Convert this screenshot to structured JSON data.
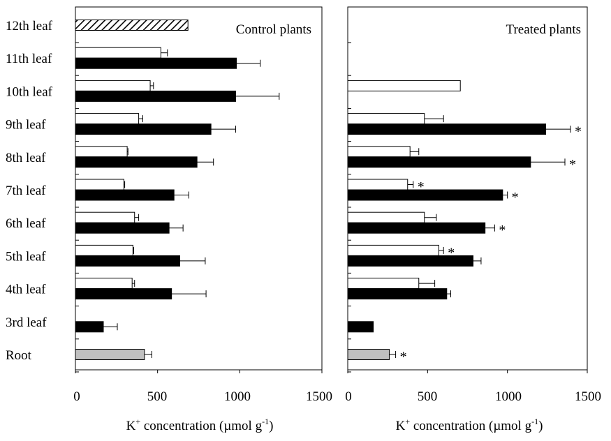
{
  "categories": [
    "Root",
    "3rd leaf",
    "4th leaf",
    "5th leaf",
    "6th leaf",
    "7th leaf",
    "8th leaf",
    "9th leaf",
    "10th leaf",
    "11th leaf",
    "12th leaf"
  ],
  "x_ticks": [
    "0",
    "500",
    "1000",
    "1500"
  ],
  "xlabel": {
    "prefix": "K",
    "sup": "+",
    "mid": " concentration (µmol g",
    "sup2": "-1",
    "suffix": ")"
  },
  "colors": {
    "white_bar": "#ffffff",
    "black_bar": "#000000",
    "root_bar": "#c0c0c0",
    "axis": "#000000"
  },
  "chart_data": [
    {
      "type": "bar",
      "orientation": "horizontal",
      "title": "Control plants",
      "xlim": [
        0,
        1500
      ],
      "categories": [
        "Root",
        "3rd leaf",
        "4th leaf",
        "5th leaf",
        "6th leaf",
        "7th leaf",
        "8th leaf",
        "9th leaf",
        "10th leaf",
        "11th leaf",
        "12th leaf"
      ],
      "series": [
        {
          "style": "white",
          "values": [
            null,
            null,
            345,
            350,
            360,
            295,
            315,
            385,
            455,
            520,
            null
          ],
          "errors": [
            null,
            null,
            15,
            5,
            25,
            5,
            5,
            25,
            20,
            40,
            null
          ]
        },
        {
          "style": "black",
          "values": [
            null,
            170,
            585,
            635,
            570,
            600,
            740,
            825,
            975,
            980,
            null
          ],
          "errors": [
            null,
            85,
            210,
            155,
            85,
            90,
            100,
            150,
            265,
            145,
            null
          ]
        },
        {
          "style": "grey",
          "values": [
            420,
            null,
            null,
            null,
            null,
            null,
            null,
            null,
            null,
            null,
            null
          ],
          "errors": [
            45,
            null,
            null,
            null,
            null,
            null,
            null,
            null,
            null,
            null,
            null
          ]
        },
        {
          "style": "hatched",
          "values": [
            null,
            null,
            null,
            null,
            null,
            null,
            null,
            null,
            null,
            null,
            685
          ],
          "errors": [
            null,
            null,
            null,
            null,
            null,
            null,
            null,
            null,
            null,
            null,
            null
          ]
        }
      ],
      "significance": []
    },
    {
      "type": "bar",
      "orientation": "horizontal",
      "title": "Treated plants",
      "xlim": [
        0,
        1500
      ],
      "categories": [
        "Root",
        "3rd leaf",
        "4th leaf",
        "5th leaf",
        "6th leaf",
        "7th leaf",
        "8th leaf",
        "9th leaf",
        "10th leaf",
        "11th leaf",
        "12th leaf"
      ],
      "series": [
        {
          "style": "white",
          "values": [
            null,
            null,
            445,
            570,
            480,
            375,
            390,
            480,
            705,
            null,
            null
          ],
          "errors": [
            null,
            null,
            100,
            30,
            75,
            35,
            55,
            120,
            null,
            null,
            null
          ]
        },
        {
          "style": "black",
          "values": [
            null,
            160,
            620,
            785,
            860,
            970,
            1145,
            1240,
            null,
            null,
            null
          ],
          "errors": [
            null,
            null,
            25,
            50,
            60,
            30,
            215,
            155,
            null,
            null,
            null
          ]
        },
        {
          "style": "grey",
          "values": [
            260,
            null,
            null,
            null,
            null,
            null,
            null,
            null,
            null,
            null,
            null
          ],
          "errors": [
            40,
            null,
            null,
            null,
            null,
            null,
            null,
            null,
            null,
            null,
            null
          ]
        }
      ],
      "significance": [
        {
          "category": "Root",
          "style": "grey",
          "mark": "*"
        },
        {
          "category": "5th leaf",
          "style": "white",
          "mark": "*"
        },
        {
          "category": "6th leaf",
          "style": "black",
          "mark": "*"
        },
        {
          "category": "7th leaf",
          "style": "white",
          "mark": "*"
        },
        {
          "category": "7th leaf",
          "style": "black",
          "mark": "*"
        },
        {
          "category": "8th leaf",
          "style": "black",
          "mark": "*"
        },
        {
          "category": "9th leaf",
          "style": "black",
          "mark": "*"
        }
      ]
    }
  ]
}
